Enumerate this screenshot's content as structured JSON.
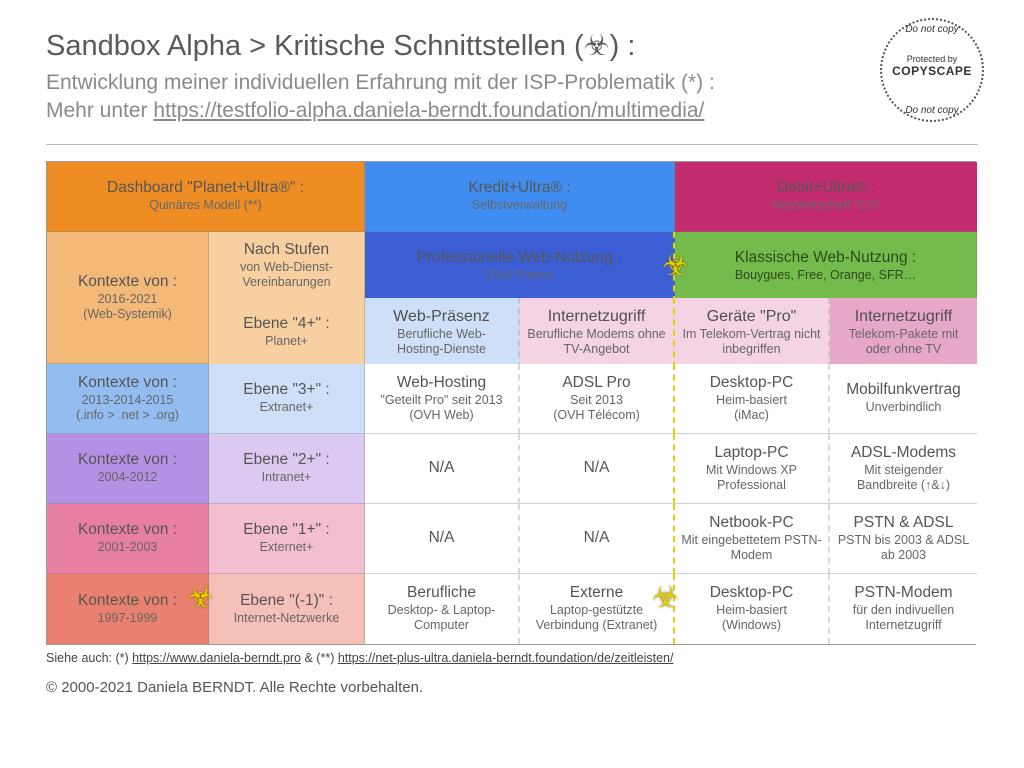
{
  "header": {
    "title": "Sandbox Alpha > Kritische Schnittstellen (☣) :",
    "subtitle1": "Entwicklung meiner individuellen Erfahrung mit der ISP-Problematik (*) :",
    "subtitle2_pre": "Mehr unter ",
    "subtitle2_link": "https://testfolio-alpha.daniela-berndt.foundation/multimedia/"
  },
  "badge": {
    "top_arc": "Do not copy",
    "mid1": "Protected by",
    "mid2": "COPYSCAPE",
    "bot_arc": "Do not copy"
  },
  "colors": {
    "orange": "#ee8d23",
    "blue": "#3f8df1",
    "magenta": "#c32c6f",
    "blue_dark": "#3d5fd6",
    "green": "#74bb4d",
    "orange_l": "#f4b978",
    "orange_ll": "#f8cfa0",
    "blue_l": "#93bdf0",
    "blue_ll": "#cde0f7",
    "pink_l": "#e7a7c9",
    "pink_ll": "#f3d3e4",
    "purple": "#b690e5",
    "purple_l": "#dcc9f1",
    "rose": "#e77fa2",
    "rose_l": "#f3bfd0",
    "red": "#ea8170",
    "red_l": "#f4c0b7",
    "biohazard": "#e6d100"
  },
  "colhdr": [
    {
      "t1": "Dashboard \"Planet+Ultra®\" :",
      "t2": "Quinäres Modell (**)",
      "bg": "orange"
    },
    {
      "t1": "Kredit+Ultra® :",
      "t2": "Selbstverwaltung",
      "bg": "blue"
    },
    {
      "t1": "Debit+Ultra® :",
      "t2": "Netzwirtschaft \"2.0\"",
      "bg": "magenta"
    }
  ],
  "subhdr": {
    "left1": {
      "t1": "Kontexte von :",
      "t2": "2016-2021\n(Web-Systemik)",
      "bg": "orange_l"
    },
    "left2a": {
      "t1": "Nach Stufen",
      "t2": "von Web-Dienst-\nVereinbarungen",
      "bg": "orange_ll"
    },
    "left2b": {
      "t1": "Ebene \"4+\" :",
      "t2": "Planet+",
      "bg": "orange_ll"
    },
    "mid": {
      "t1": "Professionelle Web-Nutzung :",
      "t2": "OVH France",
      "bg": "blue_dark"
    },
    "right": {
      "t1": "Klassische Web-Nutzung :",
      "t2": "Bouygues, Free, Orange, SFR…",
      "bg": "green"
    },
    "c1": {
      "t1": "Web-Präsenz",
      "t2": "Berufliche Web-\nHosting-Dienste",
      "bg": "blue_ll"
    },
    "c2": {
      "t1": "Internetzugriff",
      "t2": "Berufliche Modems ohne TV-Angebot",
      "bg": "pink_ll"
    },
    "c3": {
      "t1": "Geräte \"Pro\"",
      "t2": "Im Telekom-Vertrag nicht inbegriffen",
      "bg": "pink_ll"
    },
    "c4": {
      "t1": "Internetzugriff",
      "t2": "Telekom-Pakete mit oder ohne TV",
      "bg": "pink_l"
    }
  },
  "rows": [
    {
      "l1": {
        "t1": "Kontexte von :",
        "t2": "2013-2014-2015\n(.info > .net > .org)",
        "bg": "blue_l"
      },
      "l2": {
        "t1": "Ebene \"3+\" :",
        "t2": "Extranet+",
        "bg": "blue_ll"
      },
      "c": [
        {
          "t1": "Web-Hosting",
          "t2": "\"Geteilt Pro\" seit 2013 (OVH Web)"
        },
        {
          "t1": "ADSL Pro",
          "t2": "Seit 2013\n(OVH Télécom)"
        },
        {
          "t1": "Desktop-PC",
          "t2": "Heim-basiert\n(iMac)"
        },
        {
          "t1": "Mobilfunkvertrag",
          "t2": "Unverbindlich"
        }
      ]
    },
    {
      "l1": {
        "t1": "Kontexte von :",
        "t2": "2004-2012",
        "bg": "purple"
      },
      "l2": {
        "t1": "Ebene \"2+\" :",
        "t2": "Intranet+",
        "bg": "purple_l"
      },
      "c": [
        {
          "t1": "N/A",
          "t2": ""
        },
        {
          "t1": "N/A",
          "t2": ""
        },
        {
          "t1": "Laptop-PC",
          "t2": "Mit Windows XP Professional"
        },
        {
          "t1": "ADSL-Modems",
          "t2": "Mit steigender Bandbreite (↑&↓)"
        }
      ]
    },
    {
      "l1": {
        "t1": "Kontexte von :",
        "t2": "2001-2003",
        "bg": "rose"
      },
      "l2": {
        "t1": "Ebene \"1+\" :",
        "t2": "Externet+",
        "bg": "rose_l"
      },
      "c": [
        {
          "t1": "N/A",
          "t2": ""
        },
        {
          "t1": "N/A",
          "t2": ""
        },
        {
          "t1": "Netbook-PC",
          "t2": "Mit eingebettetem PSTN-Modem"
        },
        {
          "t1": "PSTN & ADSL",
          "t2": "PSTN bis 2003 & ADSL ab 2003"
        }
      ]
    },
    {
      "l1": {
        "t1": "Kontexte von :",
        "t2": "1997-1999",
        "bg": "red"
      },
      "l2": {
        "t1": "Ebene \"(-1)\" :",
        "t2": "Internet-Netzwerke",
        "bg": "red_l"
      },
      "c": [
        {
          "t1": "Berufliche",
          "t2": "Desktop- & Laptop-\nComputer"
        },
        {
          "t1": "Externe",
          "t2": "Laptop-gestützte Verbindung (Extranet)"
        },
        {
          "t1": "Desktop-PC",
          "t2": "Heim-basiert\n(Windows)"
        },
        {
          "t1": "PSTN-Modem",
          "t2": "für den indivuellen Internetzugriff"
        }
      ]
    }
  ],
  "footer": {
    "f1_pre": "Siehe auch: (*) ",
    "f1_l1": "https://www.daniela-berndt.pro",
    "f1_mid": " & (**) ",
    "f1_l2": "https://net-plus-ultra.daniela-berndt.foundation/de/zeitleisten/",
    "f2": "© 2000-2021 Daniela BERNDT. Alle Rechte vorbehalten."
  },
  "biohazard": "☣"
}
